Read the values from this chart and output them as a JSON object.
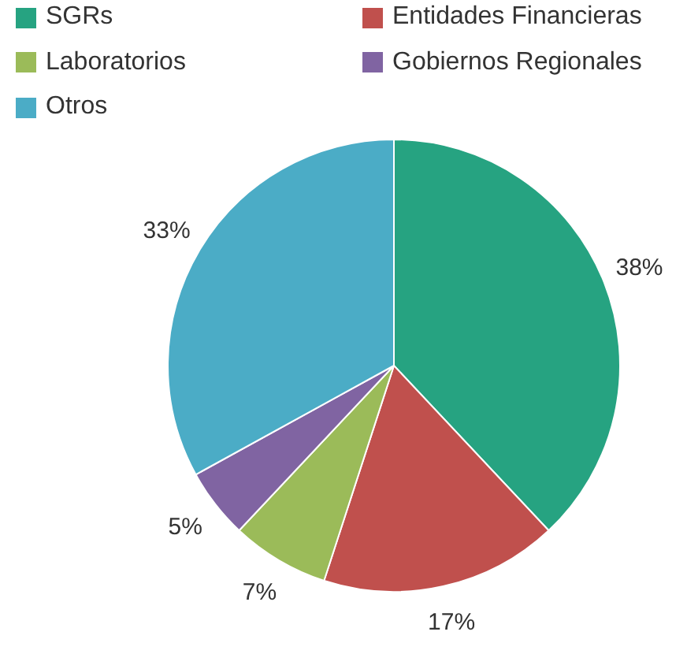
{
  "chart_data": {
    "type": "pie",
    "categories": [
      "SGRs",
      "Entidades Financieras",
      "Laboratorios",
      "Gobiernos Regionales",
      "Otros"
    ],
    "values": [
      38,
      17,
      7,
      5,
      33
    ],
    "colors": [
      "#26a381",
      "#c0504d",
      "#9bbb59",
      "#8064a2",
      "#4bacc6"
    ],
    "value_labels": [
      "38%",
      "17%",
      "7%",
      "5%",
      "33%"
    ],
    "legend": "top"
  }
}
